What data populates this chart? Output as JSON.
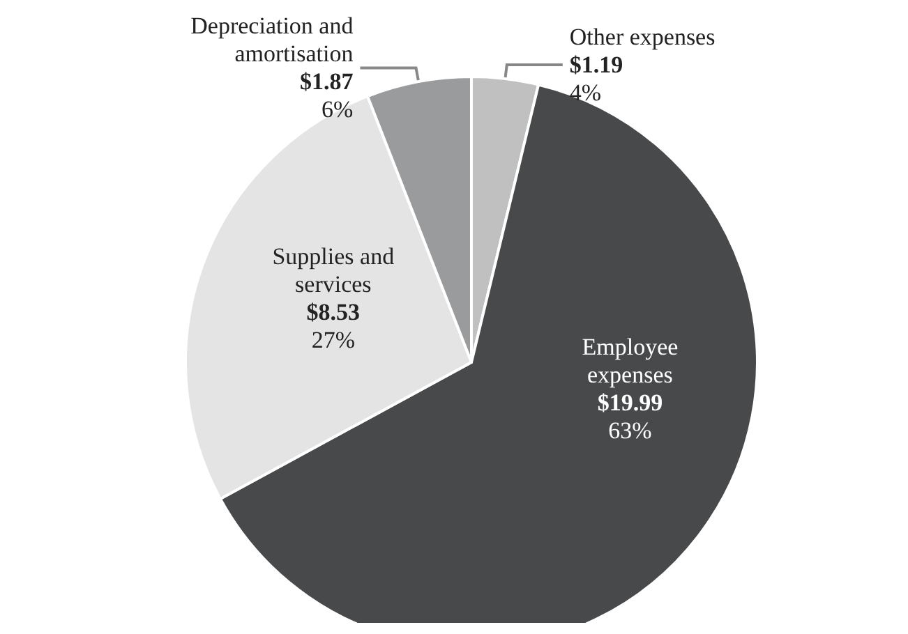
{
  "chart_data": {
    "type": "pie",
    "categories": [
      "Other expenses",
      "Employee expenses",
      "Supplies and services",
      "Depreciation and amortisation"
    ],
    "values": [
      1.19,
      19.99,
      8.53,
      1.87
    ],
    "colors": [
      "#c0c0c0",
      "#48494b",
      "#e4e4e4",
      "#9a9b9d"
    ],
    "value_labels": [
      "$1.19\n4%",
      "$19.99\n63%",
      "$8.53\n27%",
      "$1.87\n6%"
    ]
  }
}
